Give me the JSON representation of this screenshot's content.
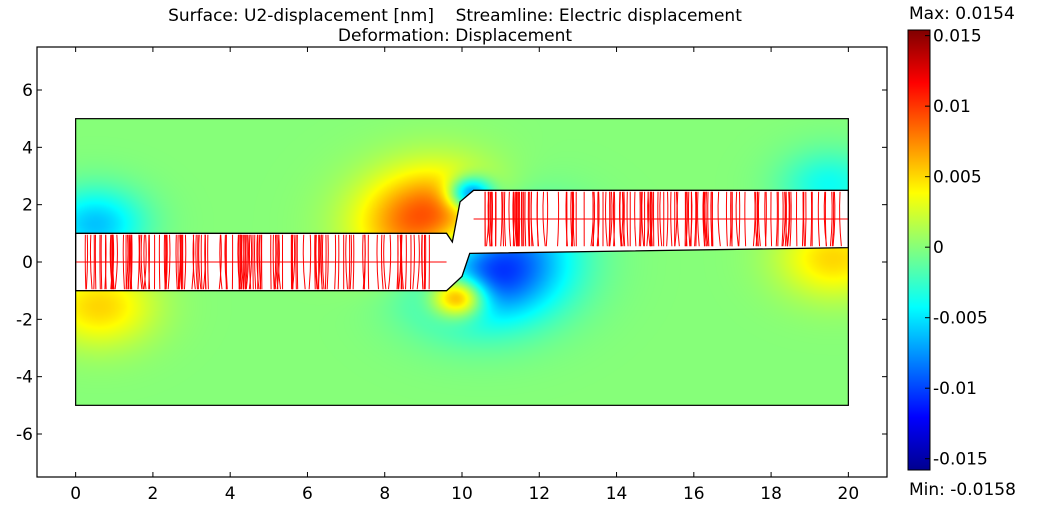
{
  "chart_data": {
    "type": "heatmap",
    "title_line1": "Surface: U2-displacement [nm]    Streamline: Electric displacement",
    "title_line2": "Deformation: Displacement",
    "surface_quantity": "U2-displacement [nm]",
    "streamline_quantity": "Electric displacement",
    "deformation": "Displacement",
    "xlim": [
      -1,
      21
    ],
    "ylim": [
      -7.5,
      7.5
    ],
    "x_ticks": [
      "0",
      "2",
      "4",
      "6",
      "8",
      "10",
      "12",
      "14",
      "16",
      "18",
      "20"
    ],
    "y_ticks": [
      "6",
      "4",
      "2",
      "0",
      "-2",
      "-4",
      "-6"
    ],
    "domain_x": [
      0,
      20
    ],
    "domain_y": [
      -5,
      5
    ],
    "electrode_left": {
      "x": [
        0,
        9.6
      ],
      "y": [
        -1,
        1
      ]
    },
    "electrode_right": {
      "x": [
        10.3,
        20
      ],
      "y": [
        0.5,
        2.5
      ]
    },
    "colorbar": {
      "colormap": "jet",
      "max_label": "Max: 0.0154",
      "min_label": "Min: -0.0158",
      "max": 0.0154,
      "min": -0.0158,
      "ticks": [
        "0.015",
        "0.01",
        "0.005",
        "0",
        "-0.005",
        "-0.01",
        "-0.015"
      ],
      "tick_values": [
        0.015,
        0.01,
        0.005,
        0,
        -0.005,
        -0.01,
        -0.015
      ]
    },
    "field_features": [
      {
        "x": 9.4,
        "y": 1.2,
        "value": 0.0154,
        "spread": 1.3
      },
      {
        "x": 10.5,
        "y": 0.1,
        "value": -0.0158,
        "spread": 1.4
      },
      {
        "x": 9.9,
        "y": -1.2,
        "value": 0.012,
        "spread": 0.5
      },
      {
        "x": 10.2,
        "y": 2.4,
        "value": -0.011,
        "spread": 0.4
      },
      {
        "x": 0.5,
        "y": 1.3,
        "value": -0.006,
        "spread": 0.9
      },
      {
        "x": 0.6,
        "y": -1.5,
        "value": 0.005,
        "spread": 1.0
      },
      {
        "x": 19.5,
        "y": 2.6,
        "value": -0.004,
        "spread": 0.9
      },
      {
        "x": 19.6,
        "y": 0.2,
        "value": 0.005,
        "spread": 1.0
      }
    ],
    "streamline_color": "#ff0000",
    "outline_color": "#000000"
  }
}
